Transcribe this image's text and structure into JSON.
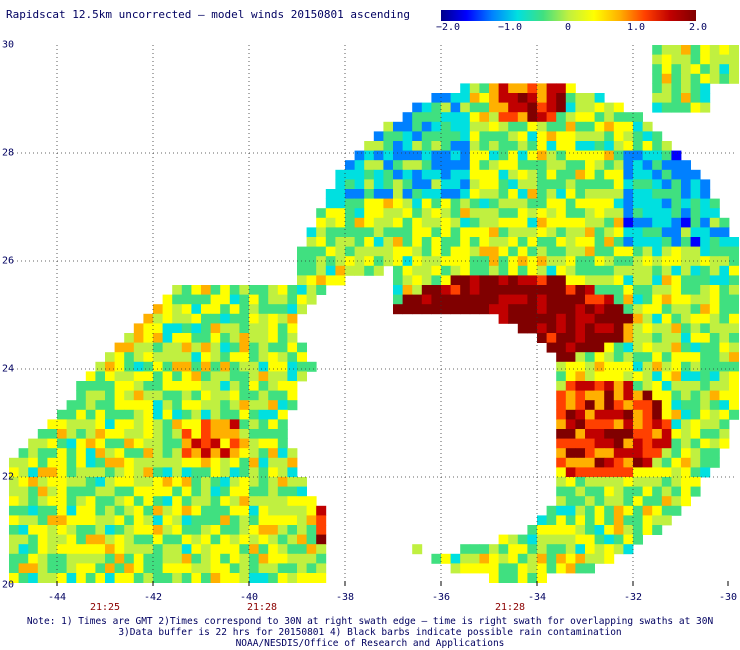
{
  "title": "Rapidscat 12.5km uncorrected — model winds 20150801 ascending",
  "colorbar": {
    "ticks": [
      "−2.0",
      "−1.0",
      "0",
      "1.0",
      "2.0"
    ],
    "colors": [
      "#00008b",
      "#0000ff",
      "#0080ff",
      "#00e0e0",
      "#40e080",
      "#c0f040",
      "#ffff00",
      "#ffb000",
      "#ff4000",
      "#c00000",
      "#800000"
    ]
  },
  "axes": {
    "x_labels": [
      "-44",
      "-42",
      "-40",
      "-38",
      "-36",
      "-34",
      "-32",
      "-30"
    ],
    "y_labels": [
      "30",
      "28",
      "26",
      "24",
      "22",
      "20"
    ],
    "x_range": [
      -45,
      -30
    ],
    "y_range": [
      20,
      30
    ]
  },
  "time_labels": [
    "21:25",
    "21:28",
    "21:28"
  ],
  "notes": [
    "Note: 1) Times are GMT 2)Times correspond to 30N at right swath edge — time is right swath for overlapping swaths at 30N",
    "3)Data buffer is 22 hrs for 20150801 4) Black barbs indicate possible rain contamination",
    "NOAA/NESDIS/Office of Research and Applications"
  ]
}
